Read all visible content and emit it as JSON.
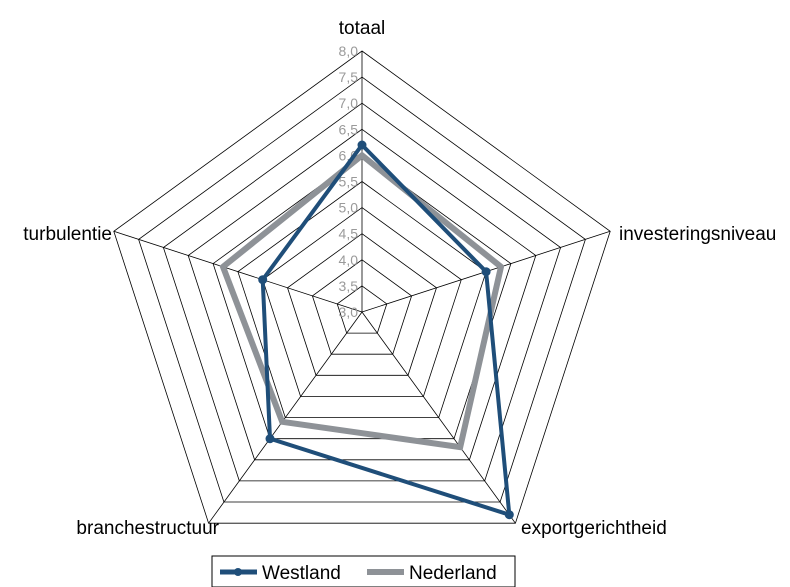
{
  "chart_data": {
    "type": "radar",
    "title": "",
    "axes": [
      "totaal",
      "investeringsniveau",
      "exportgerichtheid",
      "branchestructuur",
      "turbulentie"
    ],
    "range": [
      3.0,
      8.0
    ],
    "ticks": [
      "3,0",
      "3,5",
      "4,0",
      "4,5",
      "5,0",
      "5,5",
      "6,0",
      "6,5",
      "7,0",
      "7,5",
      "8,0"
    ],
    "grid": true,
    "legend_position": "bottom",
    "series": [
      {
        "name": "Westland",
        "color": "#1f4e79",
        "markers": true,
        "values": [
          6.2,
          5.5,
          7.8,
          6.0,
          5.0
        ]
      },
      {
        "name": "Nederland",
        "color": "#8e9297",
        "markers": false,
        "values": [
          6.0,
          5.8,
          6.2,
          5.6,
          5.8
        ]
      }
    ]
  }
}
